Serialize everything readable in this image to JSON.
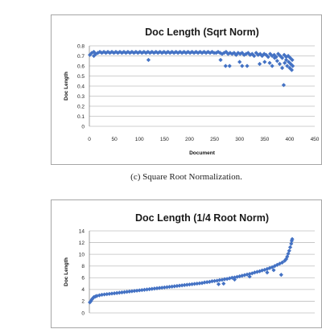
{
  "caption": "(c) Square Root Normalization.",
  "chart_data": [
    {
      "type": "scatter",
      "title": "Doc Length (Sqrt Norm)",
      "xlabel": "Document",
      "ylabel": "Doc Length",
      "xlim": [
        0,
        450
      ],
      "ylim": [
        0,
        0.8
      ],
      "xticks": [
        "0",
        "50",
        "100",
        "150",
        "200",
        "250",
        "300",
        "350",
        "400",
        "450"
      ],
      "yticks": [
        "0",
        "0.1",
        "0.2",
        "0.3",
        "0.4",
        "0.5",
        "0.6",
        "0.7",
        "0.8"
      ],
      "grid": true,
      "marker_color": "#4472c4",
      "series": [
        {
          "points": [
            [
              1,
              0.71
            ],
            [
              5,
              0.73
            ],
            [
              9,
              0.74
            ],
            [
              13,
              0.72
            ],
            [
              17,
              0.73
            ],
            [
              21,
              0.74
            ],
            [
              25,
              0.73
            ],
            [
              29,
              0.74
            ],
            [
              33,
              0.73
            ],
            [
              37,
              0.74
            ],
            [
              41,
              0.73
            ],
            [
              45,
              0.74
            ],
            [
              49,
              0.73
            ],
            [
              53,
              0.74
            ],
            [
              57,
              0.73
            ],
            [
              61,
              0.74
            ],
            [
              65,
              0.73
            ],
            [
              69,
              0.74
            ],
            [
              73,
              0.73
            ],
            [
              77,
              0.74
            ],
            [
              81,
              0.73
            ],
            [
              85,
              0.74
            ],
            [
              89,
              0.73
            ],
            [
              93,
              0.74
            ],
            [
              97,
              0.73
            ],
            [
              101,
              0.74
            ],
            [
              105,
              0.73
            ],
            [
              109,
              0.74
            ],
            [
              113,
              0.73
            ],
            [
              117,
              0.74
            ],
            [
              121,
              0.73
            ],
            [
              125,
              0.74
            ],
            [
              129,
              0.73
            ],
            [
              133,
              0.74
            ],
            [
              137,
              0.73
            ],
            [
              141,
              0.74
            ],
            [
              145,
              0.73
            ],
            [
              149,
              0.74
            ],
            [
              153,
              0.73
            ],
            [
              157,
              0.74
            ],
            [
              161,
              0.73
            ],
            [
              165,
              0.74
            ],
            [
              169,
              0.73
            ],
            [
              173,
              0.74
            ],
            [
              177,
              0.73
            ],
            [
              181,
              0.74
            ],
            [
              185,
              0.73
            ],
            [
              189,
              0.74
            ],
            [
              193,
              0.73
            ],
            [
              197,
              0.74
            ],
            [
              201,
              0.73
            ],
            [
              205,
              0.74
            ],
            [
              209,
              0.73
            ],
            [
              213,
              0.74
            ],
            [
              217,
              0.73
            ],
            [
              221,
              0.74
            ],
            [
              225,
              0.73
            ],
            [
              229,
              0.74
            ],
            [
              233,
              0.73
            ],
            [
              237,
              0.74
            ],
            [
              241,
              0.73
            ],
            [
              245,
              0.74
            ],
            [
              249,
              0.73
            ],
            [
              253,
              0.73
            ],
            [
              257,
              0.74
            ],
            [
              261,
              0.73
            ],
            [
              265,
              0.72
            ],
            [
              269,
              0.73
            ],
            [
              273,
              0.74
            ],
            [
              277,
              0.72
            ],
            [
              281,
              0.73
            ],
            [
              285,
              0.72
            ],
            [
              289,
              0.73
            ],
            [
              293,
              0.71
            ],
            [
              297,
              0.73
            ],
            [
              301,
              0.72
            ],
            [
              305,
              0.73
            ],
            [
              309,
              0.71
            ],
            [
              313,
              0.72
            ],
            [
              317,
              0.73
            ],
            [
              321,
              0.71
            ],
            [
              325,
              0.72
            ],
            [
              329,
              0.7
            ],
            [
              333,
              0.73
            ],
            [
              337,
              0.71
            ],
            [
              341,
              0.72
            ],
            [
              345,
              0.7
            ],
            [
              349,
              0.72
            ],
            [
              353,
              0.71
            ],
            [
              357,
              0.69
            ],
            [
              361,
              0.72
            ],
            [
              365,
              0.7
            ],
            [
              369,
              0.71
            ],
            [
              373,
              0.69
            ],
            [
              377,
              0.72
            ],
            [
              381,
              0.7
            ],
            [
              385,
              0.68
            ],
            [
              389,
              0.71
            ],
            [
              393,
              0.69
            ],
            [
              397,
              0.7
            ],
            [
              401,
              0.68
            ],
            [
              405,
              0.66
            ],
            [
              9,
              0.7
            ],
            [
              118,
              0.66
            ],
            [
              262,
              0.66
            ],
            [
              272,
              0.6
            ],
            [
              280,
              0.6
            ],
            [
              300,
              0.64
            ],
            [
              305,
              0.6
            ],
            [
              315,
              0.6
            ],
            [
              340,
              0.62
            ],
            [
              350,
              0.64
            ],
            [
              360,
              0.63
            ],
            [
              365,
              0.6
            ],
            [
              370,
              0.68
            ],
            [
              375,
              0.65
            ],
            [
              380,
              0.62
            ],
            [
              385,
              0.58
            ],
            [
              390,
              0.63
            ],
            [
              393,
              0.66
            ],
            [
              395,
              0.6
            ],
            [
              398,
              0.64
            ],
            [
              400,
              0.58
            ],
            [
              402,
              0.62
            ],
            [
              404,
              0.56
            ],
            [
              406,
              0.6
            ],
            [
              388,
              0.41
            ]
          ]
        }
      ]
    },
    {
      "type": "scatter",
      "title": "Doc Length (1/4 Root Norm)",
      "xlabel": "",
      "ylabel": "Doc Length",
      "xlim": [
        0,
        450
      ],
      "ylim": [
        0,
        14
      ],
      "xticks": [],
      "yticks": [
        "0",
        "2",
        "4",
        "6",
        "8",
        "10",
        "12",
        "14"
      ],
      "grid": true,
      "marker_color": "#4472c4",
      "series": [
        {
          "points": [
            [
              1,
              1.8
            ],
            [
              3,
              2.0
            ],
            [
              5,
              2.3
            ],
            [
              7,
              2.5
            ],
            [
              9,
              2.7
            ],
            [
              12,
              2.8
            ],
            [
              15,
              2.9
            ],
            [
              20,
              3.0
            ],
            [
              25,
              3.1
            ],
            [
              30,
              3.15
            ],
            [
              35,
              3.2
            ],
            [
              40,
              3.25
            ],
            [
              45,
              3.3
            ],
            [
              50,
              3.35
            ],
            [
              55,
              3.4
            ],
            [
              60,
              3.45
            ],
            [
              65,
              3.5
            ],
            [
              70,
              3.55
            ],
            [
              75,
              3.6
            ],
            [
              80,
              3.65
            ],
            [
              85,
              3.7
            ],
            [
              90,
              3.75
            ],
            [
              95,
              3.8
            ],
            [
              100,
              3.85
            ],
            [
              105,
              3.9
            ],
            [
              110,
              3.95
            ],
            [
              115,
              4.0
            ],
            [
              120,
              4.05
            ],
            [
              125,
              4.1
            ],
            [
              130,
              4.15
            ],
            [
              135,
              4.2
            ],
            [
              140,
              4.25
            ],
            [
              145,
              4.3
            ],
            [
              150,
              4.35
            ],
            [
              155,
              4.4
            ],
            [
              160,
              4.45
            ],
            [
              165,
              4.5
            ],
            [
              170,
              4.55
            ],
            [
              175,
              4.6
            ],
            [
              180,
              4.65
            ],
            [
              185,
              4.7
            ],
            [
              190,
              4.75
            ],
            [
              195,
              4.8
            ],
            [
              200,
              4.85
            ],
            [
              205,
              4.9
            ],
            [
              210,
              4.95
            ],
            [
              215,
              5.0
            ],
            [
              220,
              5.05
            ],
            [
              225,
              5.1
            ],
            [
              230,
              5.2
            ],
            [
              235,
              5.25
            ],
            [
              240,
              5.3
            ],
            [
              245,
              5.4
            ],
            [
              250,
              5.45
            ],
            [
              255,
              5.5
            ],
            [
              260,
              5.6
            ],
            [
              265,
              5.65
            ],
            [
              270,
              5.75
            ],
            [
              275,
              5.8
            ],
            [
              280,
              5.9
            ],
            [
              285,
              6.0
            ],
            [
              290,
              6.05
            ],
            [
              295,
              6.15
            ],
            [
              300,
              6.25
            ],
            [
              305,
              6.35
            ],
            [
              310,
              6.45
            ],
            [
              315,
              6.55
            ],
            [
              320,
              6.65
            ],
            [
              325,
              6.75
            ],
            [
              330,
              6.9
            ],
            [
              335,
              7.0
            ],
            [
              340,
              7.1
            ],
            [
              345,
              7.25
            ],
            [
              350,
              7.35
            ],
            [
              355,
              7.5
            ],
            [
              360,
              7.65
            ],
            [
              365,
              7.8
            ],
            [
              370,
              8.0
            ],
            [
              375,
              8.2
            ],
            [
              380,
              8.4
            ],
            [
              385,
              8.6
            ],
            [
              390,
              8.9
            ],
            [
              393,
              9.2
            ],
            [
              395,
              9.6
            ],
            [
              397,
              10.1
            ],
            [
              399,
              10.6
            ],
            [
              401,
              11.2
            ],
            [
              403,
              11.8
            ],
            [
              404,
              12.3
            ],
            [
              405,
              12.6
            ],
            [
              258,
              4.9
            ],
            [
              268,
              5.0
            ],
            [
              290,
              5.7
            ],
            [
              320,
              6.2
            ],
            [
              355,
              6.9
            ],
            [
              368,
              7.3
            ],
            [
              383,
              6.5
            ]
          ]
        }
      ]
    }
  ]
}
